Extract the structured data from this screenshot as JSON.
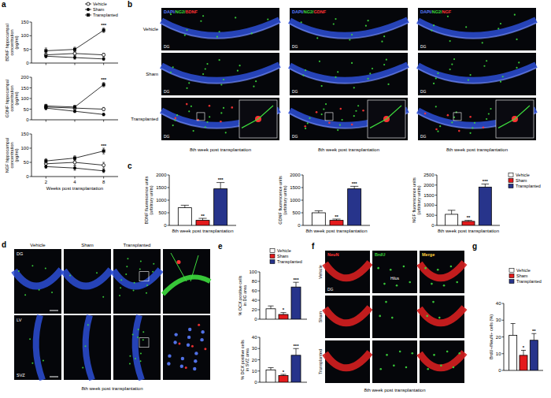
{
  "panel_labels": [
    "a",
    "b",
    "c",
    "d",
    "e",
    "f",
    "g"
  ],
  "chart_data": [
    {
      "type": "line",
      "ylabel": "BDNF hippocampal concentration (pg/ml)",
      "categories": [
        "2",
        "4",
        "8"
      ],
      "ylim": [
        0,
        150
      ],
      "yticks": [
        0,
        50,
        100,
        150
      ],
      "tick_labels": "y",
      "legend": "top-right",
      "series": [
        {
          "name": "Vehicle",
          "color": "#000000",
          "marker": "circle-open",
          "values": [
            30,
            35,
            30
          ],
          "errors": [
            8,
            8,
            6
          ]
        },
        {
          "name": "Sham",
          "color": "#000000",
          "marker": "circle",
          "values": [
            25,
            20,
            15
          ],
          "errors": [
            6,
            6,
            5
          ]
        },
        {
          "name": "Transplanted",
          "color": "#000000",
          "marker": "square",
          "values": [
            45,
            50,
            120
          ],
          "errors": [
            10,
            8,
            8
          ],
          "significance": [
            null,
            null,
            "***"
          ]
        }
      ]
    },
    {
      "type": "line",
      "ylabel": "GDNF hippocampal concentration (pg/ml)",
      "categories": [
        "2",
        "4",
        "8"
      ],
      "ylim": [
        0,
        200
      ],
      "yticks": [
        0,
        50,
        100,
        150,
        200
      ],
      "tick_labels": "y",
      "series": [
        {
          "color": "#000000",
          "marker": "circle-open",
          "values": [
            60,
            55,
            50
          ],
          "errors": [
            8,
            8,
            8
          ]
        },
        {
          "color": "#000000",
          "marker": "circle",
          "values": [
            55,
            40,
            25
          ],
          "errors": [
            8,
            6,
            6
          ]
        },
        {
          "color": "#000000",
          "marker": "square",
          "values": [
            65,
            60,
            165
          ],
          "errors": [
            8,
            8,
            10
          ],
          "significance": [
            null,
            null,
            "***"
          ]
        }
      ]
    },
    {
      "type": "line",
      "ylabel": "NGF hippocampal concentration (pg/ml)",
      "xlabel": "Weeks post transplantation",
      "categories": [
        "2",
        "4",
        "8"
      ],
      "ylim": [
        0,
        150
      ],
      "yticks": [
        0,
        50,
        100,
        150
      ],
      "series": [
        {
          "color": "#000000",
          "marker": "circle-open",
          "values": [
            45,
            50,
            40
          ],
          "errors": [
            8,
            10,
            10
          ]
        },
        {
          "color": "#000000",
          "marker": "circle",
          "values": [
            35,
            30,
            20
          ],
          "errors": [
            6,
            8,
            6
          ]
        },
        {
          "color": "#000000",
          "marker": "square",
          "values": [
            55,
            65,
            90
          ],
          "errors": [
            8,
            8,
            10
          ],
          "significance": [
            null,
            null,
            "***"
          ]
        }
      ]
    },
    {
      "type": "bar",
      "ylabel": "BDNF fluorescence units (arbitrary units)",
      "xlabel": "8th week post transplantation",
      "categories": [
        null
      ],
      "ylim": [
        0,
        2000
      ],
      "yticks": [
        0,
        500,
        1000,
        1500,
        2000
      ],
      "tick_labels": "y",
      "series": [
        {
          "color": "#ffffff",
          "values": [
            700
          ],
          "errors": [
            100
          ]
        },
        {
          "color": "#e41a1c",
          "values": [
            200
          ],
          "errors": [
            80
          ],
          "significance": [
            "**"
          ]
        },
        {
          "color": "#27348b",
          "values": [
            1450
          ],
          "errors": [
            250
          ],
          "significance": [
            "***"
          ]
        }
      ]
    },
    {
      "type": "bar",
      "ylabel": "GDNF fluorescence units (arbitrary units)",
      "xlabel": "8th week post transplantation",
      "categories": [
        null
      ],
      "ylim": [
        0,
        2000
      ],
      "yticks": [
        0,
        500,
        1000,
        1500,
        2000
      ],
      "tick_labels": "y",
      "series": [
        {
          "color": "#ffffff",
          "values": [
            500
          ],
          "errors": [
            80
          ]
        },
        {
          "color": "#e41a1c",
          "values": [
            200
          ],
          "errors": [
            50
          ],
          "significance": [
            "**"
          ]
        },
        {
          "color": "#27348b",
          "values": [
            1450
          ],
          "errors": [
            100
          ],
          "significance": [
            "***"
          ]
        }
      ]
    },
    {
      "type": "bar",
      "ylabel": "NGF fluorescence units (arbitrary units)",
      "xlabel": "8th week post transplantation",
      "categories": [
        null
      ],
      "ylim": [
        0,
        2500
      ],
      "yticks": [
        0,
        500,
        1000,
        1500,
        2000,
        2500
      ],
      "tick_labels": "y",
      "legend": "right",
      "series": [
        {
          "name": "Vehicle",
          "color": "#ffffff",
          "values": [
            550
          ],
          "errors": [
            200
          ]
        },
        {
          "name": "Sham",
          "color": "#e41a1c",
          "values": [
            200
          ],
          "errors": [
            50
          ],
          "significance": [
            "**"
          ]
        },
        {
          "name": "Transplanted",
          "color": "#27348b",
          "values": [
            1900
          ],
          "errors": [
            150
          ],
          "significance": [
            "***"
          ]
        }
      ]
    },
    {
      "type": "bar",
      "ylabel": "% DCX positive cells in DG area",
      "categories": [
        null
      ],
      "ylim": [
        0,
        100
      ],
      "yticks": [
        0,
        20,
        40,
        60,
        80,
        100
      ],
      "tick_labels": "y",
      "legend": "top-right",
      "series": [
        {
          "name": "Vehicle",
          "color": "#ffffff",
          "values": [
            22
          ],
          "errors": [
            6
          ]
        },
        {
          "name": "Sham",
          "color": "#e41a1c",
          "values": [
            10
          ],
          "errors": [
            4
          ],
          "significance": [
            "*"
          ]
        },
        {
          "name": "Transplanted",
          "color": "#27348b",
          "values": [
            68
          ],
          "errors": [
            10
          ],
          "significance": [
            "***"
          ]
        }
      ]
    },
    {
      "type": "bar",
      "ylabel": "% DCX positive cells in SVZ area",
      "categories": [
        null
      ],
      "ylim": [
        0,
        40
      ],
      "yticks": [
        0,
        10,
        20,
        30,
        40
      ],
      "tick_labels": "y",
      "series": [
        {
          "color": "#ffffff",
          "values": [
            11
          ],
          "errors": [
            2
          ]
        },
        {
          "color": "#e41a1c",
          "values": [
            6
          ],
          "errors": [
            1
          ],
          "significance": [
            "*"
          ]
        },
        {
          "color": "#27348b",
          "values": [
            24
          ],
          "errors": [
            6
          ],
          "significance": [
            "***"
          ]
        }
      ]
    },
    {
      "type": "bar",
      "ylabel": "BrdU+/NeuN+ cells (%)",
      "categories": [
        null
      ],
      "ylim": [
        0,
        40
      ],
      "yticks": [
        0,
        10,
        20,
        30,
        40
      ],
      "tick_labels": "y",
      "legend": "top-right",
      "series": [
        {
          "name": "Vehicle",
          "color": "#ffffff",
          "values": [
            21
          ],
          "errors": [
            7
          ]
        },
        {
          "name": "Sham",
          "color": "#e41a1c",
          "values": [
            9
          ],
          "errors": [
            3
          ],
          "significance": [
            "*"
          ]
        },
        {
          "name": "Transplanted",
          "color": "#27348b",
          "values": [
            18
          ],
          "errors": [
            4
          ],
          "significance": [
            "**"
          ]
        }
      ]
    }
  ],
  "image_panels": {
    "b": {
      "columns": [
        "DAPI/NG2/BDNF",
        "DAPI/NG2/GDNF",
        "DAPI/NG2/NGF"
      ],
      "rows": [
        "Vehicle",
        "Sham",
        "Transplanted"
      ],
      "region": "DG",
      "caption": "8th week post transplantation"
    },
    "d": {
      "columns": [
        "Vehicle",
        "Sham",
        "Transplanted"
      ],
      "regions": [
        "DG",
        "LV",
        "SVZ"
      ],
      "caption": "8th week post transplantation"
    },
    "f": {
      "columns": [
        "NeuN",
        "BrdU",
        "Merge"
      ],
      "rows": [
        "Vehicle",
        "Sham",
        "Transplanted"
      ],
      "regions": [
        "DG",
        "Hilus"
      ],
      "caption": "8th week post transplantation"
    }
  }
}
